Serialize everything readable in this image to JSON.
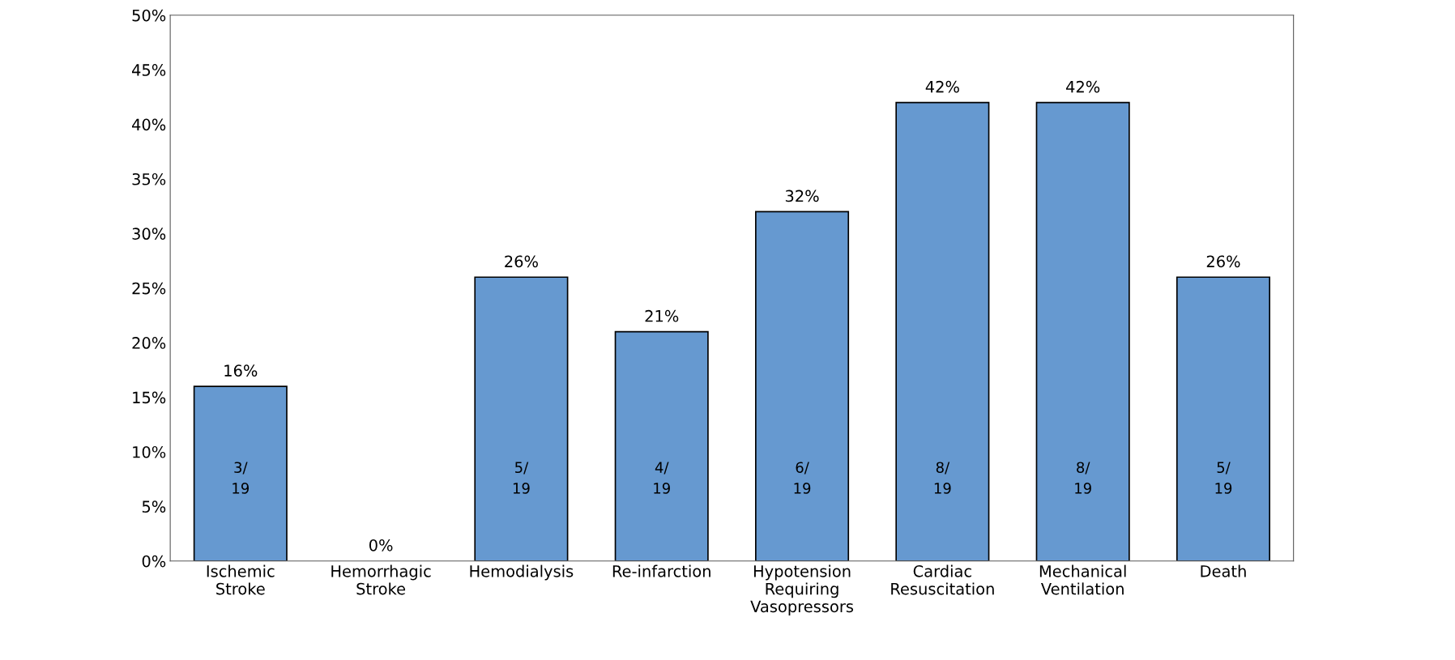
{
  "chart_data": {
    "type": "bar",
    "categories": [
      "Ischemic\nStroke",
      "Hemorrhagic\nStroke",
      "Hemodialysis",
      "Re-infarction",
      "Hypotension\nRequiring\nVasopressors",
      "Cardiac\nResuscitation",
      "Mechanical\nVentilation",
      "Death"
    ],
    "values": [
      16,
      0,
      26,
      21,
      32,
      42,
      42,
      26
    ],
    "value_labels": [
      "16%",
      "0%",
      "26%",
      "21%",
      "32%",
      "42%",
      "42%",
      "26%"
    ],
    "color": "#6699d0",
    "ylim": [
      0,
      50
    ],
    "yticks": [
      {
        "value": 0,
        "label": "0%"
      },
      {
        "value": 5,
        "label": "5%"
      },
      {
        "value": 10,
        "label": "10%"
      },
      {
        "value": 15,
        "label": "15%"
      },
      {
        "value": 20,
        "label": "20%"
      },
      {
        "value": 25,
        "label": "25%"
      },
      {
        "value": 30,
        "label": "30%"
      },
      {
        "value": 35,
        "label": "35%"
      },
      {
        "value": 40,
        "label": "40%"
      },
      {
        "value": 45,
        "label": "45%"
      },
      {
        "value": 50,
        "label": "50%"
      }
    ],
    "grid": false,
    "annotations": [
      "3/\n19",
      "5/\n19",
      "4/\n19",
      "6/\n19",
      "8/\n19",
      "8/\n19",
      "5/\n19"
    ]
  }
}
